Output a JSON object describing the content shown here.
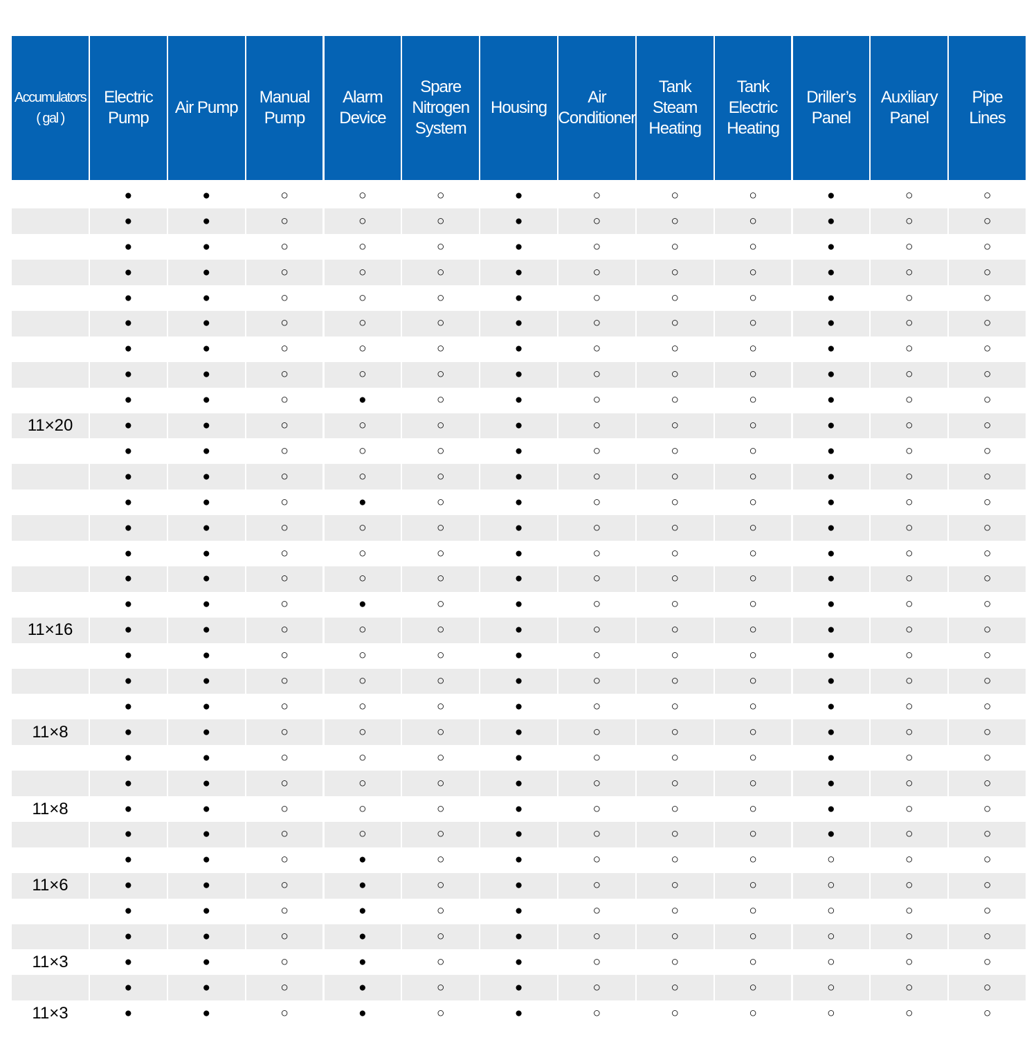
{
  "header": {
    "columns": [
      "Accumulators\n( gal )",
      "Electric\nPump",
      "Air Pump",
      "Manual\nPump",
      "Alarm\nDevice",
      "Spare\nNitrogen\nSystem",
      "Housing",
      "Air\nConditioner",
      "Tank Steam\nHeating",
      "Tank Electric\nHeating",
      "Driller’s\nPanel",
      "Auxiliary\nPanel",
      "Pipe\nLines"
    ]
  },
  "rows": [
    [
      null,
      "●",
      "●",
      "○",
      "○",
      "○",
      "●",
      "○",
      "○",
      "○",
      "●",
      "○",
      "○"
    ],
    [
      null,
      "●",
      "●",
      "○",
      "○",
      "○",
      "●",
      "○",
      "○",
      "○",
      "●",
      "○",
      "○"
    ],
    [
      null,
      "●",
      "●",
      "○",
      "○",
      "○",
      "●",
      "○",
      "○",
      "○",
      "●",
      "○",
      "○"
    ],
    [
      null,
      "●",
      "●",
      "○",
      "○",
      "○",
      "●",
      "○",
      "○",
      "○",
      "●",
      "○",
      "○"
    ],
    [
      null,
      "●",
      "●",
      "○",
      "○",
      "○",
      "●",
      "○",
      "○",
      "○",
      "●",
      "○",
      "○"
    ],
    [
      null,
      "●",
      "●",
      "○",
      "○",
      "○",
      "●",
      "○",
      "○",
      "○",
      "●",
      "○",
      "○"
    ],
    [
      null,
      "●",
      "●",
      "○",
      "○",
      "○",
      "●",
      "○",
      "○",
      "○",
      "●",
      "○",
      "○"
    ],
    [
      null,
      "●",
      "●",
      "○",
      "○",
      "○",
      "●",
      "○",
      "○",
      "○",
      "●",
      "○",
      "○"
    ],
    [
      null,
      "●",
      "●",
      "○",
      "●",
      "○",
      "●",
      "○",
      "○",
      "○",
      "●",
      "○",
      "○"
    ],
    [
      "11×20",
      "●",
      "●",
      "○",
      "○",
      "○",
      "●",
      "○",
      "○",
      "○",
      "●",
      "○",
      "○"
    ],
    [
      null,
      "●",
      "●",
      "○",
      "○",
      "○",
      "●",
      "○",
      "○",
      "○",
      "●",
      "○",
      "○"
    ],
    [
      null,
      "●",
      "●",
      "○",
      "○",
      "○",
      "●",
      "○",
      "○",
      "○",
      "●",
      "○",
      "○"
    ],
    [
      null,
      "●",
      "●",
      "○",
      "●",
      "○",
      "●",
      "○",
      "○",
      "○",
      "●",
      "○",
      "○"
    ],
    [
      null,
      "●",
      "●",
      "○",
      "○",
      "○",
      "●",
      "○",
      "○",
      "○",
      "●",
      "○",
      "○"
    ],
    [
      null,
      "●",
      "●",
      "○",
      "○",
      "○",
      "●",
      "○",
      "○",
      "○",
      "●",
      "○",
      "○"
    ],
    [
      null,
      "●",
      "●",
      "○",
      "○",
      "○",
      "●",
      "○",
      "○",
      "○",
      "●",
      "○",
      "○"
    ],
    [
      null,
      "●",
      "●",
      "○",
      "●",
      "○",
      "●",
      "○",
      "○",
      "○",
      "●",
      "○",
      "○"
    ],
    [
      "11×16",
      "●",
      "●",
      "○",
      "○",
      "○",
      "●",
      "○",
      "○",
      "○",
      "●",
      "○",
      "○"
    ],
    [
      null,
      "●",
      "●",
      "○",
      "○",
      "○",
      "●",
      "○",
      "○",
      "○",
      "●",
      "○",
      "○"
    ],
    [
      null,
      "●",
      "●",
      "○",
      "○",
      "○",
      "●",
      "○",
      "○",
      "○",
      "●",
      "○",
      "○"
    ],
    [
      null,
      "●",
      "●",
      "○",
      "○",
      "○",
      "●",
      "○",
      "○",
      "○",
      "●",
      "○",
      "○"
    ],
    [
      "11×8",
      "●",
      "●",
      "○",
      "○",
      "○",
      "●",
      "○",
      "○",
      "○",
      "●",
      "○",
      "○"
    ],
    [
      null,
      "●",
      "●",
      "○",
      "○",
      "○",
      "●",
      "○",
      "○",
      "○",
      "●",
      "○",
      "○"
    ],
    [
      null,
      "●",
      "●",
      "○",
      "○",
      "○",
      "●",
      "○",
      "○",
      "○",
      "●",
      "○",
      "○"
    ],
    [
      "11×8",
      "●",
      "●",
      "○",
      "○",
      "○",
      "●",
      "○",
      "○",
      "○",
      "●",
      "○",
      "○"
    ],
    [
      null,
      "●",
      "●",
      "○",
      "○",
      "○",
      "●",
      "○",
      "○",
      "○",
      "●",
      "○",
      "○"
    ],
    [
      null,
      "●",
      "●",
      "○",
      "●",
      "○",
      "●",
      "○",
      "○",
      "○",
      "○",
      "○",
      "○"
    ],
    [
      "11×6",
      "●",
      "●",
      "○",
      "●",
      "○",
      "●",
      "○",
      "○",
      "○",
      "○",
      "○",
      "○"
    ],
    [
      null,
      "●",
      "●",
      "○",
      "●",
      "○",
      "●",
      "○",
      "○",
      "○",
      "○",
      "○",
      "○"
    ],
    [
      null,
      "●",
      "●",
      "○",
      "●",
      "○",
      "●",
      "○",
      "○",
      "○",
      "○",
      "○",
      "○"
    ],
    [
      "11×3",
      "●",
      "●",
      "○",
      "●",
      "○",
      "●",
      "○",
      "○",
      "○",
      "○",
      "○",
      "○"
    ],
    [
      null,
      "●",
      "●",
      "○",
      "●",
      "○",
      "●",
      "○",
      "○",
      "○",
      "○",
      "○",
      "○"
    ],
    [
      "11×3",
      "●",
      "●",
      "○",
      "●",
      "○",
      "●",
      "○",
      "○",
      "○",
      "○",
      "○",
      "○"
    ]
  ]
}
